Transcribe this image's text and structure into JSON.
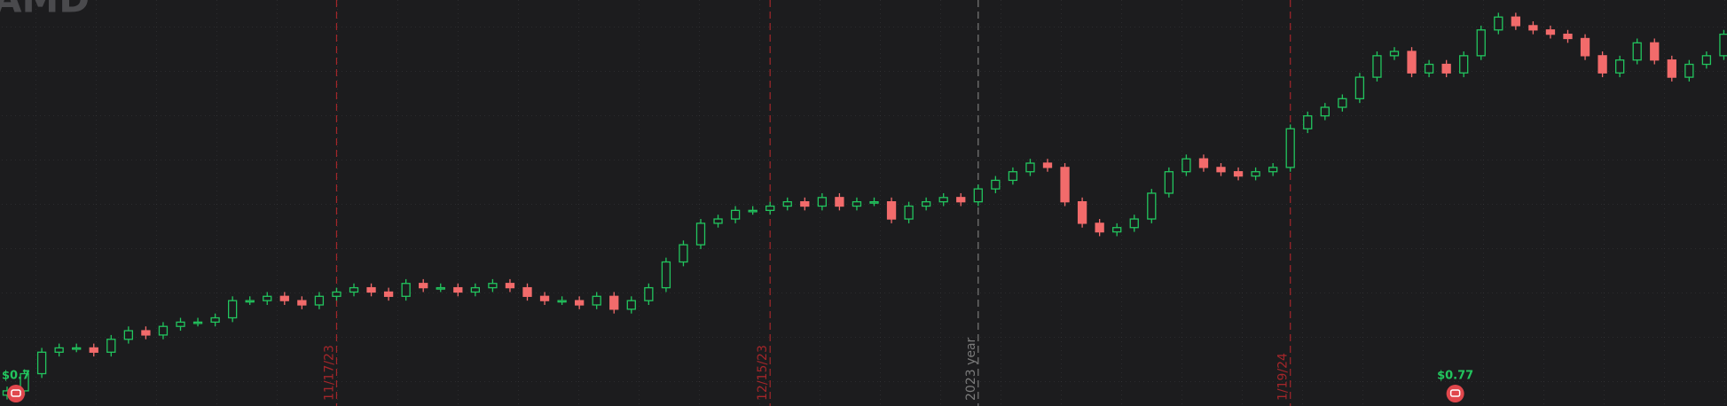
{
  "chart_data": {
    "type": "candlestick",
    "title": "AMD",
    "ylim": [
      88,
      186
    ],
    "up_color": "#22c55e",
    "down_color": "#f26b6b",
    "open": [
      93,
      94,
      98,
      103,
      104,
      104,
      103,
      106,
      108,
      107,
      109,
      110,
      110,
      111,
      115,
      115,
      116,
      115,
      114,
      116,
      117,
      118,
      117,
      116,
      119,
      118,
      118,
      117,
      118,
      119,
      118,
      116,
      115,
      115,
      114,
      116,
      113,
      115,
      118,
      124,
      128,
      133,
      134,
      136,
      136,
      137,
      138,
      137,
      139,
      137,
      138,
      138,
      134,
      137,
      138,
      139,
      138,
      141,
      143,
      145,
      147,
      146,
      138,
      133,
      131,
      132,
      134,
      140,
      145,
      148,
      146,
      145,
      144,
      145,
      146,
      155,
      158,
      160,
      162,
      167,
      172,
      173,
      168,
      170,
      168,
      172,
      178,
      181,
      179,
      178,
      177,
      176,
      172,
      168,
      171,
      175,
      171,
      167,
      170,
      172
    ],
    "high": [
      95,
      99,
      104,
      105,
      105,
      105,
      107,
      109,
      109,
      110,
      111,
      111,
      112,
      116,
      116,
      117,
      117,
      116,
      117,
      118,
      119,
      119,
      118,
      120,
      120,
      119,
      119,
      119,
      120,
      120,
      119,
      117,
      116,
      116,
      117,
      117,
      116,
      119,
      125,
      129,
      134,
      135,
      137,
      137,
      138,
      139,
      139,
      140,
      140,
      139,
      139,
      139,
      138,
      139,
      140,
      140,
      142,
      144,
      146,
      148,
      148,
      147,
      139,
      134,
      133,
      135,
      141,
      146,
      149,
      149,
      147,
      146,
      146,
      147,
      156,
      159,
      161,
      163,
      168,
      173,
      174,
      174,
      171,
      171,
      173,
      179,
      182,
      182,
      180,
      179,
      178,
      177,
      173,
      172,
      176,
      176,
      172,
      171,
      173,
      178
    ],
    "low": [
      92,
      93,
      97,
      102,
      103,
      102,
      102,
      105,
      106,
      106,
      108,
      109,
      109,
      110,
      114,
      114,
      114,
      113,
      113,
      115,
      116,
      116,
      115,
      115,
      117,
      117,
      116,
      116,
      117,
      117,
      115,
      114,
      114,
      113,
      113,
      112,
      112,
      114,
      117,
      123,
      127,
      132,
      133,
      135,
      135,
      136,
      136,
      136,
      136,
      136,
      137,
      133,
      133,
      136,
      137,
      137,
      137,
      140,
      142,
      144,
      145,
      137,
      132,
      130,
      130,
      131,
      133,
      139,
      144,
      145,
      144,
      143,
      143,
      144,
      145,
      154,
      157,
      159,
      161,
      166,
      171,
      167,
      167,
      167,
      167,
      171,
      177,
      178,
      177,
      176,
      175,
      171,
      167,
      167,
      170,
      170,
      166,
      166,
      169,
      171
    ],
    "close": [
      94,
      98,
      103,
      104,
      104,
      103,
      106,
      108,
      107,
      109,
      110,
      110,
      111,
      115,
      115,
      116,
      115,
      114,
      116,
      117,
      118,
      117,
      116,
      119,
      118,
      118,
      117,
      118,
      119,
      118,
      116,
      115,
      115,
      114,
      116,
      113,
      115,
      118,
      124,
      128,
      133,
      134,
      136,
      136,
      137,
      138,
      137,
      139,
      137,
      138,
      138,
      134,
      137,
      138,
      139,
      138,
      141,
      143,
      145,
      147,
      146,
      138,
      133,
      131,
      132,
      134,
      140,
      145,
      148,
      146,
      145,
      144,
      145,
      146,
      155,
      158,
      160,
      162,
      167,
      172,
      173,
      168,
      170,
      168,
      172,
      178,
      181,
      179,
      178,
      177,
      176,
      172,
      168,
      171,
      175,
      171,
      167,
      170,
      172,
      177
    ],
    "event_lines": [
      {
        "index": 19,
        "label": "11/17/23",
        "color": "#a3262a"
      },
      {
        "index": 44,
        "label": "12/15/23",
        "color": "#a3262a"
      },
      {
        "index": 56,
        "label": "2023 year",
        "color": "#7a7a7a"
      },
      {
        "index": 74,
        "label": "1/19/24",
        "color": "#a3262a"
      }
    ],
    "events": [
      {
        "index": 0,
        "label": "$0.7"
      },
      {
        "index": 83,
        "label": "$0.77"
      }
    ]
  }
}
